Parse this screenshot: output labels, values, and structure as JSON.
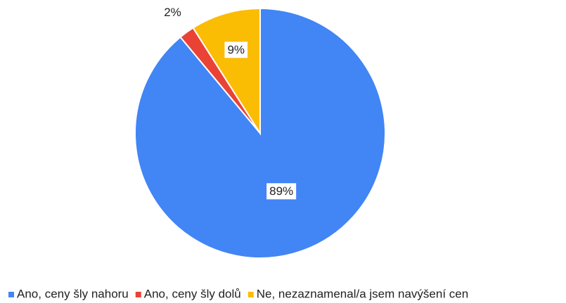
{
  "chart_data": {
    "type": "pie",
    "categories": [
      "Ano, ceny šly nahoru",
      "Ano, ceny šly dolů",
      "Ne, nezaznamenal/a jsem navýšení cen"
    ],
    "values": [
      89,
      2,
      9
    ],
    "value_labels": [
      "89%",
      "2%",
      "9%"
    ],
    "colors": [
      "#4285f4",
      "#ea4335",
      "#fbbc04"
    ],
    "legend": "bottom"
  }
}
